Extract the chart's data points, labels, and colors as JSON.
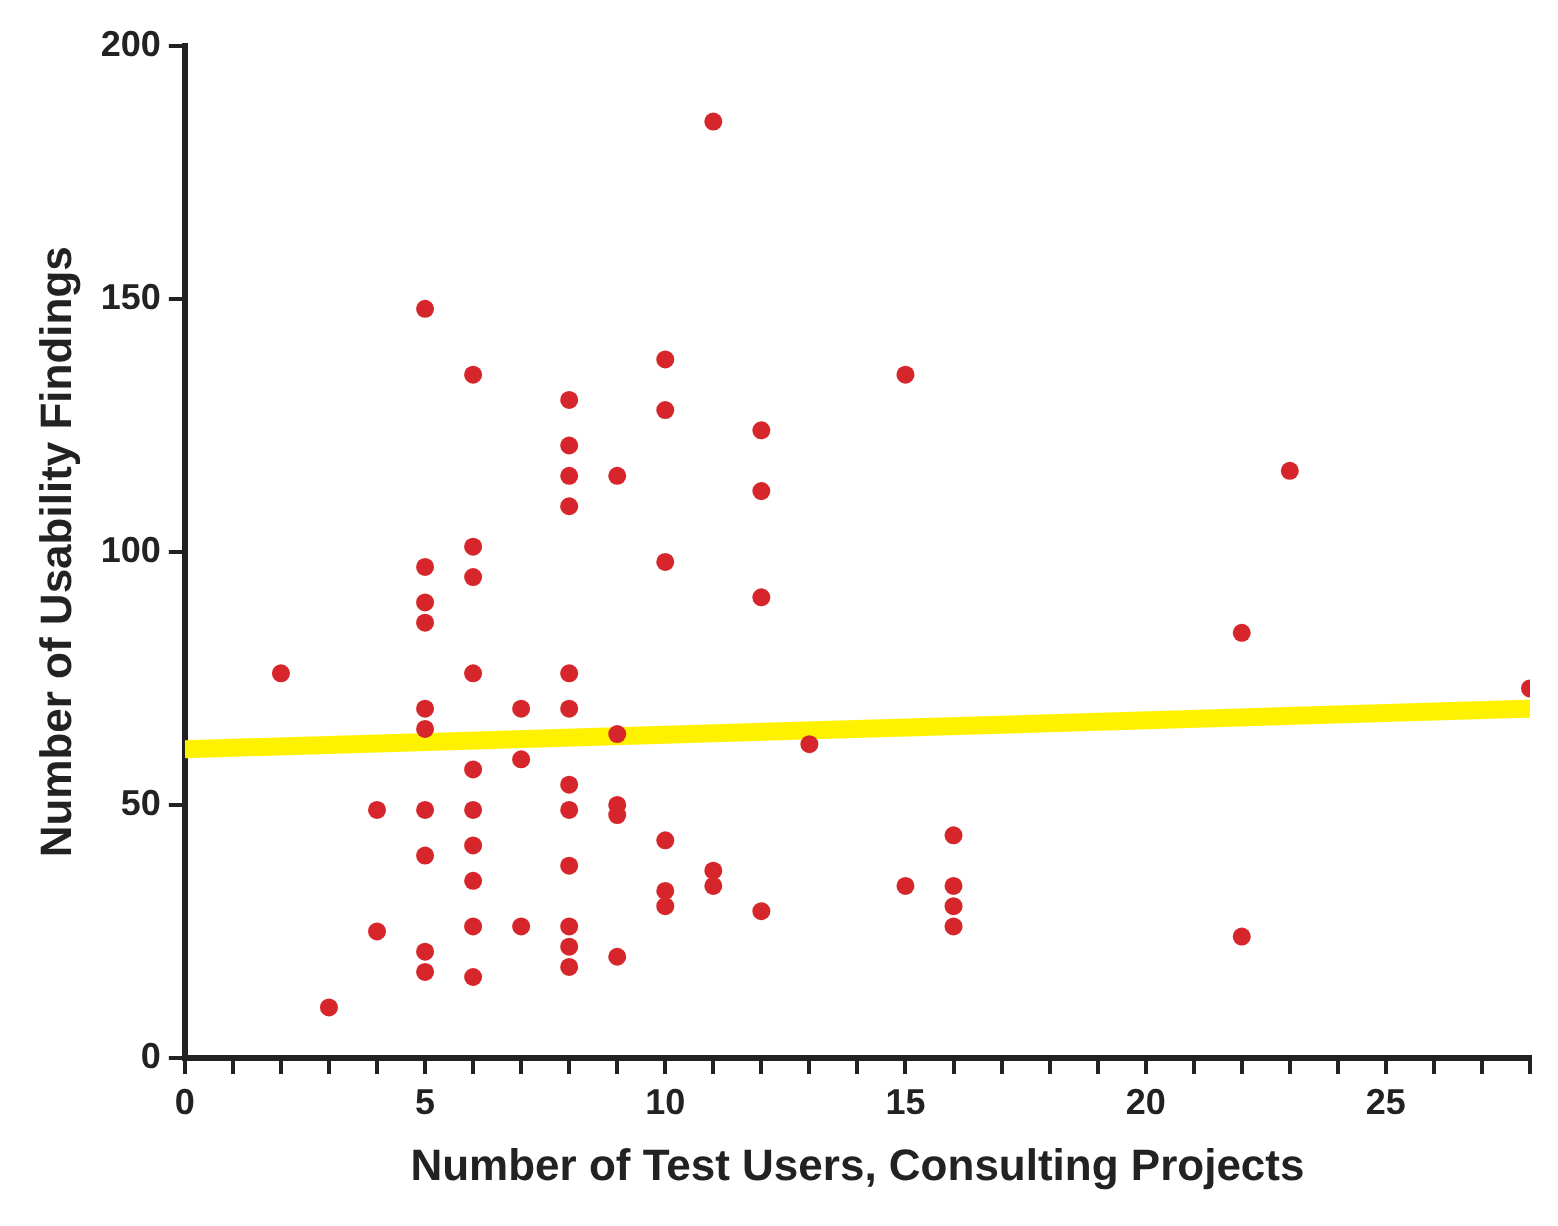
{
  "chart_data": {
    "type": "scatter",
    "xlabel": "Number of Test Users, Consulting Projects",
    "ylabel": "Number of Usability Findings",
    "xlim": [
      0,
      28
    ],
    "ylim": [
      0,
      200
    ],
    "xticks": [
      0,
      {
        "value": 1,
        "label": null
      },
      {
        "value": 2,
        "label": null
      },
      {
        "value": 3,
        "label": null
      },
      {
        "value": 4,
        "label": null
      },
      5,
      {
        "value": 6,
        "label": null
      },
      {
        "value": 7,
        "label": null
      },
      {
        "value": 8,
        "label": null
      },
      {
        "value": 9,
        "label": null
      },
      10,
      {
        "value": 11,
        "label": null
      },
      {
        "value": 12,
        "label": null
      },
      {
        "value": 13,
        "label": null
      },
      {
        "value": 14,
        "label": null
      },
      15,
      {
        "value": 16,
        "label": null
      },
      {
        "value": 17,
        "label": null
      },
      {
        "value": 18,
        "label": null
      },
      {
        "value": 19,
        "label": null
      },
      20,
      {
        "value": 21,
        "label": null
      },
      {
        "value": 22,
        "label": null
      },
      {
        "value": 23,
        "label": null
      },
      {
        "value": 24,
        "label": null
      },
      25,
      {
        "value": 26,
        "label": null
      },
      {
        "value": 27,
        "label": null
      },
      {
        "value": 28,
        "label": null
      }
    ],
    "yticks": [
      0,
      50,
      100,
      150,
      200
    ],
    "grid": false,
    "legend": false,
    "marker": "circle",
    "series": [
      {
        "color": "#d7262b",
        "x": [
          2,
          3,
          4,
          4,
          5,
          5,
          5,
          5,
          5,
          5,
          5,
          5,
          5,
          5,
          6,
          6,
          6,
          6,
          6,
          6,
          6,
          6,
          6,
          6,
          7,
          7,
          7,
          8,
          8,
          8,
          8,
          8,
          8,
          8,
          8,
          8,
          8,
          8,
          8,
          9,
          9,
          9,
          9,
          9,
          10,
          10,
          10,
          10,
          10,
          10,
          11,
          11,
          11,
          12,
          12,
          12,
          12,
          13,
          15,
          15,
          16,
          16,
          16,
          16,
          22,
          22,
          23,
          28
        ],
        "values": [
          76,
          10,
          49,
          25,
          148,
          97,
          90,
          86,
          69,
          65,
          49,
          40,
          21,
          17,
          135,
          101,
          95,
          76,
          57,
          49,
          42,
          35,
          26,
          16,
          69,
          59,
          26,
          130,
          121,
          115,
          109,
          76,
          69,
          54,
          49,
          38,
          26,
          22,
          18,
          115,
          64,
          50,
          48,
          20,
          138,
          128,
          98,
          43,
          33,
          30,
          185,
          37,
          34,
          124,
          112,
          91,
          29,
          62,
          135,
          34,
          44,
          34,
          30,
          26,
          84,
          24,
          116,
          73
        ]
      },
      {
        "type": "line",
        "color": "#fff200",
        "marker": "none",
        "x": [
          0,
          28
        ],
        "values": [
          61,
          69
        ]
      }
    ]
  }
}
